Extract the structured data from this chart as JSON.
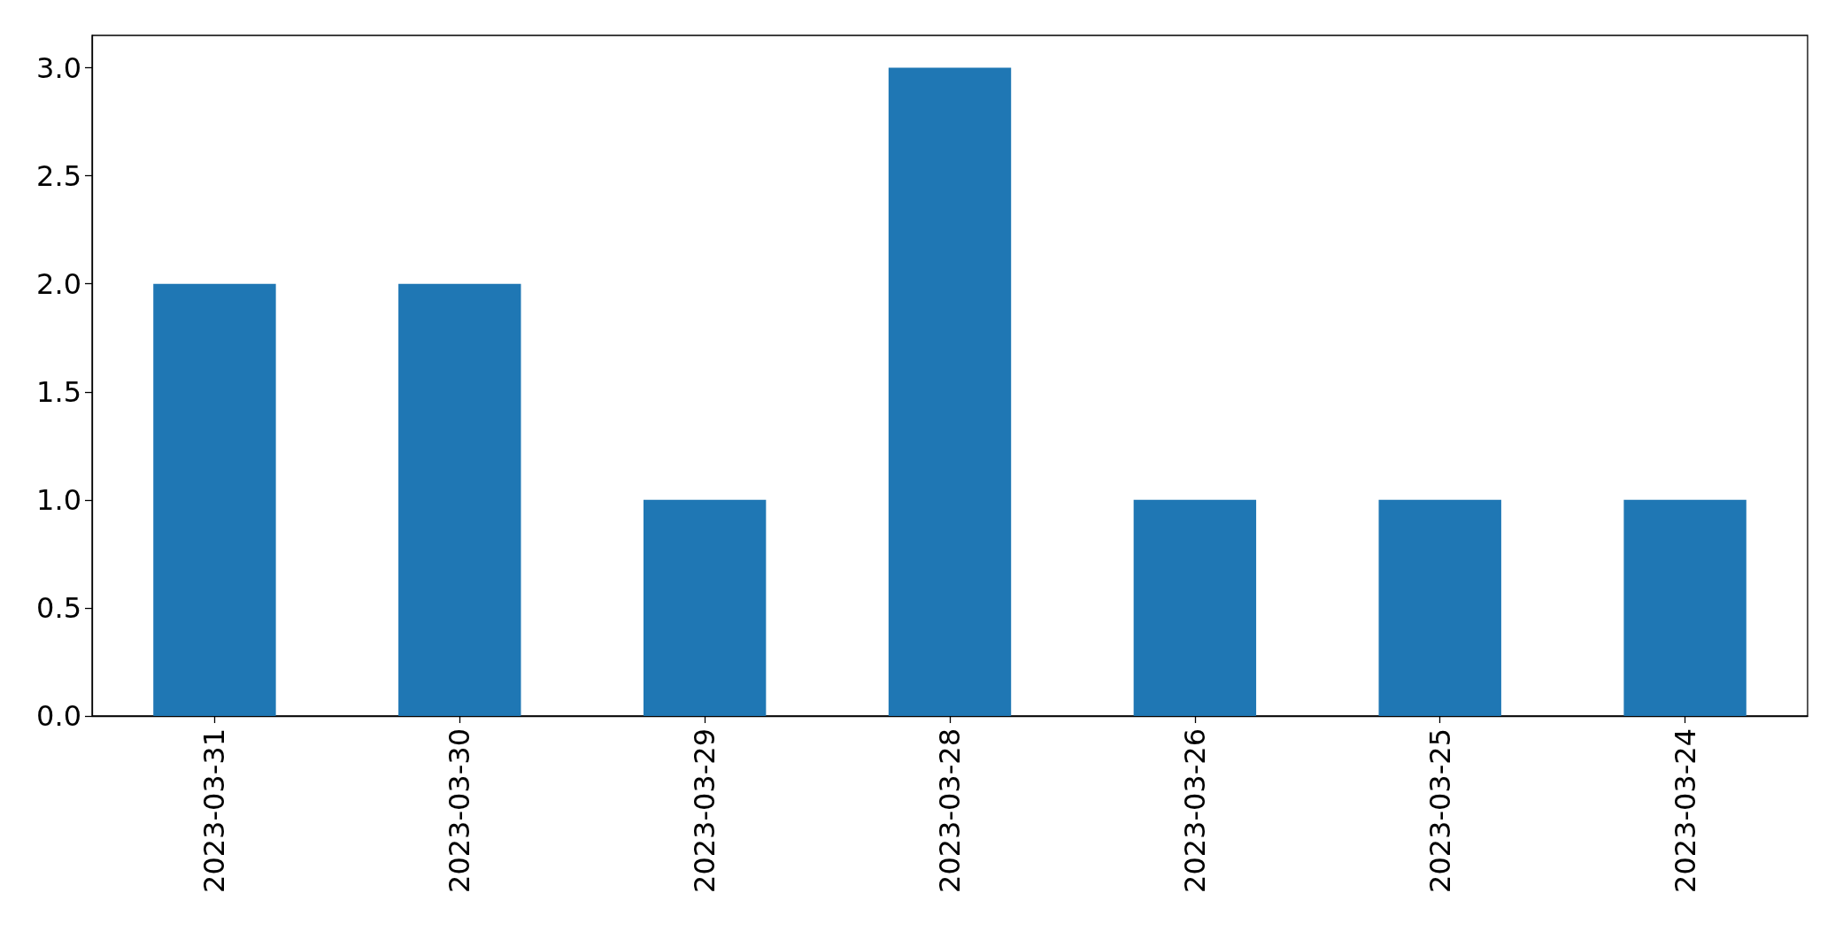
{
  "chart_data": {
    "type": "bar",
    "categories": [
      "2023-03-31",
      "2023-03-30",
      "2023-03-29",
      "2023-03-28",
      "2023-03-26",
      "2023-03-25",
      "2023-03-24"
    ],
    "values": [
      2,
      2,
      1,
      3,
      1,
      1,
      1
    ],
    "color": "#1f77b4",
    "ylim": [
      0,
      3.15
    ],
    "yticks": [
      {
        "value": 0,
        "label": "0.0"
      },
      {
        "value": 0.5,
        "label": "0.5"
      },
      {
        "value": 1,
        "label": "1.0"
      },
      {
        "value": 1.5,
        "label": "1.5"
      },
      {
        "value": 2,
        "label": "2.0"
      },
      {
        "value": 2.5,
        "label": "2.5"
      },
      {
        "value": 3,
        "label": "3.0"
      }
    ],
    "grid": false
  }
}
